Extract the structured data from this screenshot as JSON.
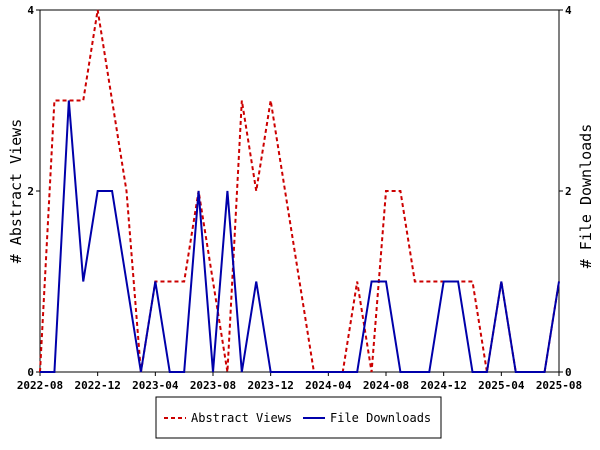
{
  "chart_data": {
    "type": "line",
    "ylabel_left": "# Abstract Views",
    "ylabel_right": "# File Downloads",
    "x_tick_labels": [
      "2022-08",
      "2022-12",
      "2023-04",
      "2023-08",
      "2023-12",
      "2024-04",
      "2024-08",
      "2024-12",
      "2025-04",
      "2025-08"
    ],
    "y_ticks_left": [
      0,
      2,
      4
    ],
    "y_ticks_right": [
      0,
      2,
      4
    ],
    "ylim": [
      0,
      4
    ],
    "grid": false,
    "legend_position": "bottom",
    "series": [
      {
        "name": "Abstract Views",
        "color": "#cc0000",
        "dash": "dashed",
        "x": [
          "2022-08",
          "2022-09",
          "2022-10",
          "2022-11",
          "2022-12",
          "2023-01",
          "2023-02",
          "2023-03",
          "2023-04",
          "2023-05",
          "2023-06",
          "2023-07",
          "2023-08",
          "2023-09",
          "2023-10",
          "2023-11",
          "2023-12",
          "2024-01",
          "2024-02",
          "2024-03",
          "2024-04",
          "2024-05",
          "2024-06",
          "2024-07",
          "2024-08",
          "2024-09",
          "2024-10",
          "2024-11",
          "2024-12",
          "2025-01",
          "2025-02",
          "2025-03",
          "2025-04",
          "2025-05",
          "2025-06",
          "2025-07",
          "2025-08"
        ],
        "values": [
          0,
          3,
          3,
          3,
          4,
          3,
          2,
          0,
          1,
          1,
          1,
          2,
          1,
          0,
          3,
          2,
          3,
          2,
          1,
          0,
          0,
          0,
          1,
          0,
          2,
          2,
          1,
          1,
          1,
          1,
          1,
          0,
          1,
          0,
          0,
          0,
          1
        ]
      },
      {
        "name": "File Downloads",
        "color": "#0000aa",
        "dash": "solid",
        "x": [
          "2022-08",
          "2022-09",
          "2022-10",
          "2022-11",
          "2022-12",
          "2023-01",
          "2023-02",
          "2023-03",
          "2023-04",
          "2023-05",
          "2023-06",
          "2023-07",
          "2023-08",
          "2023-09",
          "2023-10",
          "2023-11",
          "2023-12",
          "2024-01",
          "2024-02",
          "2024-03",
          "2024-04",
          "2024-05",
          "2024-06",
          "2024-07",
          "2024-08",
          "2024-09",
          "2024-10",
          "2024-11",
          "2024-12",
          "2025-01",
          "2025-02",
          "2025-03",
          "2025-04",
          "2025-05",
          "2025-06",
          "2025-07",
          "2025-08"
        ],
        "values": [
          0,
          0,
          3,
          1,
          2,
          2,
          1,
          0,
          1,
          0,
          0,
          2,
          0,
          2,
          0,
          1,
          0,
          0,
          0,
          0,
          0,
          0,
          0,
          1,
          1,
          0,
          0,
          0,
          1,
          1,
          0,
          0,
          1,
          0,
          0,
          0,
          1
        ]
      }
    ]
  }
}
